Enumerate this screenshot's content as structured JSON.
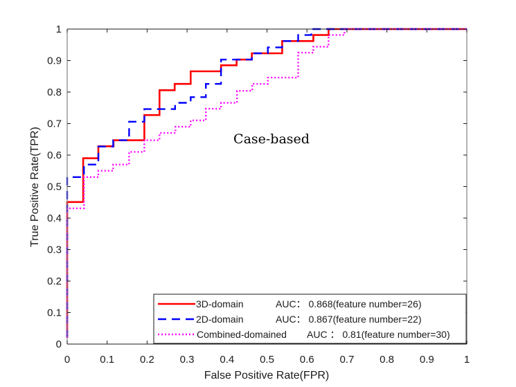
{
  "chart_data": {
    "type": "line",
    "title": "",
    "xlabel": "False Positive Rate(FPR)",
    "ylabel": "True Positive Rate(TPR)",
    "xlim": [
      0,
      1
    ],
    "ylim": [
      0,
      1
    ],
    "xticks": [
      0,
      0.1,
      0.2,
      0.3,
      0.4,
      0.5,
      0.6,
      0.7,
      0.8,
      0.9,
      1
    ],
    "xtick_labels": [
      "0",
      "0.1",
      "0.2",
      "0.3",
      "0.4",
      "0.5",
      "0.6",
      "0.7",
      "0.8",
      "0.9",
      "1"
    ],
    "yticks": [
      0,
      0.1,
      0.2,
      0.3,
      0.4,
      0.5,
      0.6,
      0.7,
      0.8,
      0.9,
      1
    ],
    "ytick_labels": [
      "0",
      "0.1",
      "0.2",
      "0.3",
      "0.4",
      "0.5",
      "0.6",
      "0.7",
      "0.8",
      "0.9",
      "1"
    ],
    "grid": false,
    "legend_position": "bottom-right",
    "annotation": "Case-based",
    "series": [
      {
        "name": "3D-domain",
        "legend_label": "3D-domain",
        "legend_auc": "AUC： 0.868(feature number=26)",
        "color": "#ff0000",
        "style": "solid",
        "x": [
          0,
          0,
          0.04,
          0.04,
          0.078,
          0.078,
          0.116,
          0.116,
          0.193,
          0.193,
          0.231,
          0.231,
          0.269,
          0.269,
          0.309,
          0.309,
          0.385,
          0.385,
          0.424,
          0.424,
          0.462,
          0.462,
          0.538,
          0.538,
          0.616,
          0.616,
          0.654,
          0.654,
          1
        ],
        "y": [
          0.02,
          0.451,
          0.451,
          0.59,
          0.59,
          0.628,
          0.628,
          0.647,
          0.647,
          0.727,
          0.727,
          0.806,
          0.806,
          0.826,
          0.826,
          0.866,
          0.866,
          0.885,
          0.885,
          0.903,
          0.903,
          0.923,
          0.923,
          0.962,
          0.962,
          0.981,
          0.981,
          1,
          1
        ]
      },
      {
        "name": "2D-domain",
        "legend_label": "2D-domain",
        "legend_auc": "AUC： 0.867(feature number=22)",
        "color": "#0000ff",
        "style": "dashed",
        "x": [
          0,
          0,
          0.042,
          0.042,
          0.078,
          0.078,
          0.115,
          0.115,
          0.155,
          0.155,
          0.193,
          0.193,
          0.27,
          0.27,
          0.309,
          0.309,
          0.347,
          0.347,
          0.385,
          0.385,
          0.462,
          0.462,
          0.502,
          0.502,
          0.538,
          0.538,
          0.578,
          0.578,
          0.611,
          0.611,
          1
        ],
        "y": [
          0.02,
          0.53,
          0.53,
          0.57,
          0.57,
          0.627,
          0.627,
          0.647,
          0.647,
          0.706,
          0.706,
          0.746,
          0.746,
          0.766,
          0.766,
          0.784,
          0.784,
          0.826,
          0.826,
          0.903,
          0.903,
          0.923,
          0.923,
          0.942,
          0.942,
          0.962,
          0.962,
          0.981,
          0.981,
          1,
          1
        ]
      },
      {
        "name": "Combined-domained",
        "legend_label": "Combined-domained",
        "legend_auc": "AUC ： 0.81(feature number=30)",
        "color": "#ff00ff",
        "style": "dotted",
        "x": [
          0,
          0,
          0.042,
          0.042,
          0.078,
          0.078,
          0.115,
          0.115,
          0.155,
          0.155,
          0.193,
          0.193,
          0.231,
          0.231,
          0.271,
          0.271,
          0.309,
          0.309,
          0.347,
          0.347,
          0.385,
          0.385,
          0.425,
          0.425,
          0.463,
          0.463,
          0.502,
          0.502,
          0.578,
          0.578,
          0.616,
          0.616,
          0.654,
          0.654,
          0.694,
          0.694,
          1
        ],
        "y": [
          0.02,
          0.431,
          0.431,
          0.53,
          0.53,
          0.55,
          0.55,
          0.57,
          0.57,
          0.61,
          0.61,
          0.647,
          0.647,
          0.67,
          0.67,
          0.69,
          0.69,
          0.71,
          0.71,
          0.747,
          0.747,
          0.766,
          0.766,
          0.804,
          0.804,
          0.826,
          0.826,
          0.846,
          0.846,
          0.925,
          0.925,
          0.944,
          0.944,
          0.981,
          0.981,
          1,
          1
        ]
      }
    ]
  }
}
